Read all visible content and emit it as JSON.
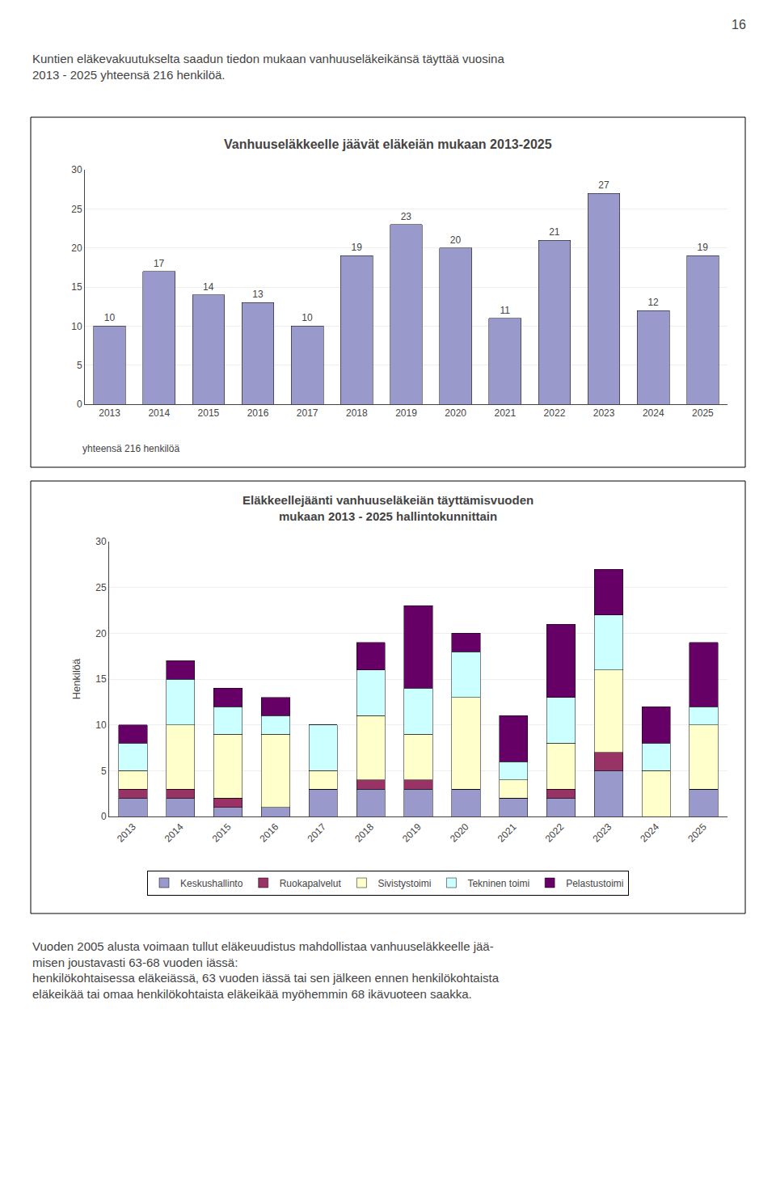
{
  "chart_data": [
    {
      "type": "bar",
      "title": "Vanhuuseläkkeelle jäävät eläkeiän mukaan 2013-2025",
      "categories": [
        "2013",
        "2014",
        "2015",
        "2016",
        "2017",
        "2018",
        "2019",
        "2020",
        "2021",
        "2022",
        "2023",
        "2024",
        "2025"
      ],
      "values": [
        10,
        17,
        14,
        13,
        10,
        19,
        23,
        20,
        11,
        21,
        27,
        12,
        19
      ],
      "color": "#9999CC",
      "ylim": [
        0,
        30
      ],
      "yticks": [
        0,
        5,
        10,
        15,
        20,
        25,
        30
      ],
      "grid": true,
      "data_labels": true,
      "annotations": [
        "16",
        "Kuntien eläkevakuutukselta saadun tiedon mukaan vanhuuseläkeikänsä täyttää vuosina\n2013 - 2025 yhteensä 216 henkilöä.",
        "yhteensä 216 henkilöä"
      ]
    },
    {
      "type": "bar",
      "stacked": true,
      "title": "Eläkkeellejäänti vanhuuseläkeiän täyttämisvuoden\nmukaan 2013 - 2025 hallintokunnittain",
      "categories": [
        "2013",
        "2014",
        "2015",
        "2016",
        "2017",
        "2018",
        "2019",
        "2020",
        "2021",
        "2022",
        "2023",
        "2024",
        "2025"
      ],
      "ylabel": "Henkilöä",
      "series": [
        {
          "name": "Keskushallinto",
          "color": "#9999CC",
          "values": [
            2,
            2,
            1,
            1,
            3,
            3,
            3,
            3,
            2,
            2,
            5,
            0,
            3
          ]
        },
        {
          "name": "Ruokapalvelut",
          "color": "#993366",
          "values": [
            1,
            1,
            1,
            0,
            0,
            1,
            1,
            0,
            0,
            1,
            2,
            0,
            0
          ]
        },
        {
          "name": "Sivistystoimi",
          "color": "#FFFFCC",
          "values": [
            2,
            7,
            7,
            8,
            2,
            7,
            5,
            10,
            2,
            5,
            9,
            5,
            7
          ]
        },
        {
          "name": "Tekninen toimi",
          "color": "#CCFFFF",
          "values": [
            3,
            5,
            3,
            2,
            5,
            5,
            5,
            5,
            2,
            5,
            6,
            3,
            2
          ]
        },
        {
          "name": "Pelastustoimi",
          "color": "#660066",
          "values": [
            2,
            2,
            2,
            2,
            0,
            3,
            9,
            2,
            5,
            8,
            5,
            4,
            7
          ]
        }
      ],
      "ylim": [
        0,
        30
      ],
      "yticks": [
        0,
        5,
        10,
        15,
        20,
        25,
        30
      ],
      "grid": true,
      "legend": "bottom",
      "annotations": [
        "Vuoden 2005 alusta voimaan tullut eläkeuudistus mahdollistaa vanhuuseläkkeelle jää-\nmisen joustavasti 63-68 vuoden iässä:\nhenkilökohtaisessa eläkeiässä, 63 vuoden iässä tai sen jälkeen ennen henkilökohtaista\neläkeikää tai omaa henkilökohtaista eläkeikää myöhemmin 68 ikävuoteen saakka."
      ]
    }
  ]
}
